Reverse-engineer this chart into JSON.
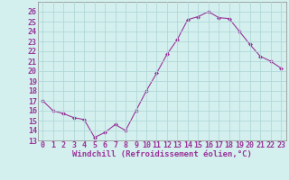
{
  "x": [
    0,
    1,
    2,
    3,
    4,
    5,
    6,
    7,
    8,
    9,
    10,
    11,
    12,
    13,
    14,
    15,
    16,
    17,
    18,
    19,
    20,
    21,
    22,
    23
  ],
  "y": [
    17.0,
    16.0,
    15.7,
    15.3,
    15.1,
    13.3,
    13.8,
    14.6,
    14.0,
    16.0,
    18.0,
    19.8,
    21.7,
    23.2,
    25.2,
    25.5,
    26.0,
    25.4,
    25.3,
    24.0,
    22.7,
    21.5,
    21.0,
    20.3
  ],
  "line_color": "#993399",
  "marker": "D",
  "marker_size": 2,
  "bg_color": "#d4f0ee",
  "grid_color": "#b0d8d8",
  "xlabel": "Windchill (Refroidissement éolien,°C)",
  "xlabel_color": "#993399",
  "tick_color": "#993399",
  "ylim": [
    13,
    27
  ],
  "xlim": [
    -0.5,
    23.5
  ],
  "yticks": [
    13,
    14,
    15,
    16,
    17,
    18,
    19,
    20,
    21,
    22,
    23,
    24,
    25,
    26
  ],
  "xticks": [
    0,
    1,
    2,
    3,
    4,
    5,
    6,
    7,
    8,
    9,
    10,
    11,
    12,
    13,
    14,
    15,
    16,
    17,
    18,
    19,
    20,
    21,
    22,
    23
  ],
  "tick_fontsize": 6,
  "xlabel_fontsize": 6.5
}
